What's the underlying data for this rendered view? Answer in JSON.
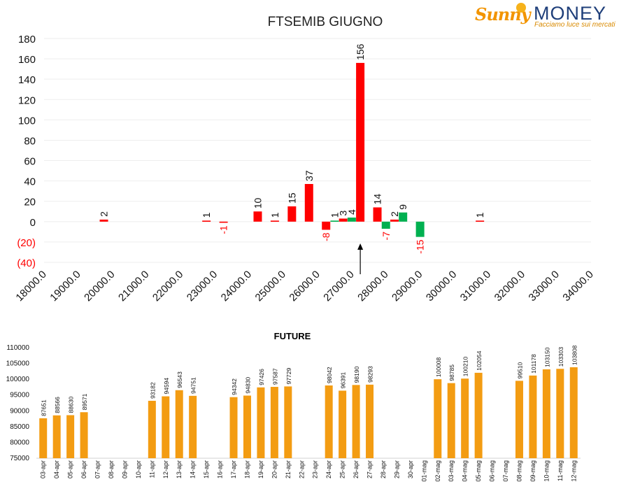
{
  "logo": {
    "brand_script": "Sunny",
    "brand_word": "MONEY",
    "tagline": "Facciamo luce sui mercati",
    "colors": {
      "script": "#f29400",
      "word": "#1f3f7a",
      "sun": "#f6b21b"
    }
  },
  "chart_data": [
    {
      "type": "bar",
      "title": "FTSEMIB GIUGNO",
      "ylim": [
        -40,
        180
      ],
      "yticks": [
        180,
        160,
        140,
        120,
        100,
        80,
        60,
        40,
        20,
        0,
        -20,
        -40
      ],
      "ytick_labels": [
        "180",
        "160",
        "140",
        "120",
        "100",
        "80",
        "60",
        "40",
        "20",
        "0",
        "(20)",
        "(40)"
      ],
      "xlim": [
        18000,
        34000
      ],
      "xticks": [
        "18000.0",
        "19000.0",
        "20000.0",
        "21000.0",
        "22000.0",
        "23000.0",
        "24000.0",
        "25000.0",
        "26000.0",
        "27000.0",
        "28000.0",
        "29000.0",
        "30000.0",
        "31000.0",
        "32000.0",
        "33000.0",
        "34000.0"
      ],
      "series": [
        {
          "color": "#ff0000",
          "points": [
            {
              "x": 19750,
              "y": 2
            },
            {
              "x": 22750,
              "y": 1
            },
            {
              "x": 23250,
              "y": -1
            },
            {
              "x": 24250,
              "y": 10
            },
            {
              "x": 24750,
              "y": 1
            },
            {
              "x": 25250,
              "y": 15
            },
            {
              "x": 25750,
              "y": 37
            },
            {
              "x": 26250,
              "y": -8
            },
            {
              "x": 26750,
              "y": 3
            },
            {
              "x": 27250,
              "y": 156
            },
            {
              "x": 27750,
              "y": 14
            },
            {
              "x": 28250,
              "y": 2
            },
            {
              "x": 30750,
              "y": 1
            }
          ]
        },
        {
          "color": "#00b050",
          "points": [
            {
              "x": 26500,
              "y": 1
            },
            {
              "x": 27000,
              "y": 4
            },
            {
              "x": 28000,
              "y": -7
            },
            {
              "x": 28500,
              "y": 9
            },
            {
              "x": 29000,
              "y": -15
            }
          ]
        }
      ],
      "negative_label_color": "#ff0000",
      "arrow_x": 27250,
      "grid": true
    },
    {
      "type": "bar",
      "title": "FUTURE",
      "ylim": [
        75000,
        110000
      ],
      "yticks": [
        110000,
        105000,
        100000,
        95000,
        90000,
        85000,
        80000,
        75000
      ],
      "color": "#f39c12",
      "categories": [
        "03-apr",
        "04-apr",
        "05-apr",
        "06-apr",
        "07-apr",
        "08-apr",
        "09-apr",
        "10-apr",
        "11-apr",
        "12-apr",
        "13-apr",
        "14-apr",
        "15-apr",
        "16-apr",
        "17-apr",
        "18-apr",
        "19-apr",
        "20-apr",
        "21-apr",
        "22-apr",
        "23-apr",
        "24-apr",
        "25-apr",
        "26-apr",
        "27-apr",
        "28-apr",
        "29-apr",
        "30-apr",
        "01-mag",
        "02-mag",
        "03-mag",
        "04-mag",
        "05-mag",
        "06-mag",
        "07-mag",
        "08-mag",
        "09-mag",
        "10-mag",
        "11-mag",
        "12-mag"
      ],
      "values": [
        87651,
        88566,
        88630,
        89571,
        null,
        null,
        null,
        null,
        93182,
        94594,
        96543,
        94751,
        null,
        null,
        94342,
        94830,
        97426,
        97587,
        97729,
        null,
        null,
        98042,
        96391,
        98190,
        98293,
        null,
        null,
        null,
        null,
        100008,
        98785,
        100210,
        102054,
        null,
        null,
        99510,
        101178,
        103150,
        103303,
        103808
      ],
      "grid": false
    }
  ]
}
